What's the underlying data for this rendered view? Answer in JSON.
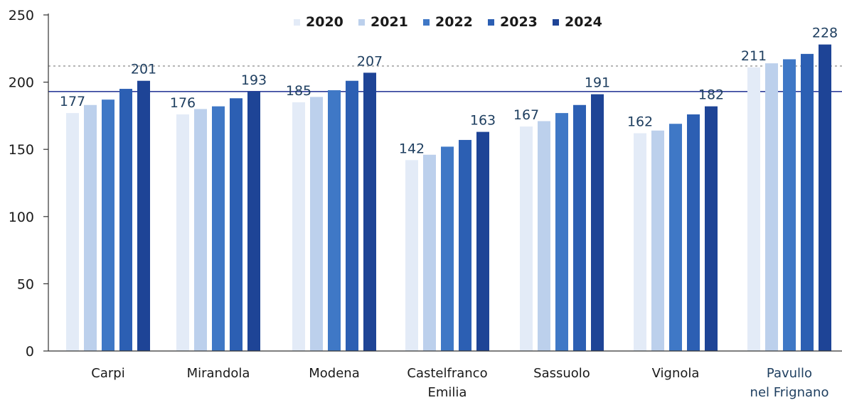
{
  "chart_data": {
    "type": "bar",
    "title": "",
    "xlabel": "",
    "ylabel": "",
    "ylim": [
      0,
      250
    ],
    "yticks": [
      0,
      50,
      100,
      150,
      200,
      250
    ],
    "grid": false,
    "legend_position": "top",
    "categories": [
      [
        "Carpi"
      ],
      [
        "Mirandola"
      ],
      [
        "Modena"
      ],
      [
        "Castelfranco",
        "Emilia"
      ],
      [
        "Sassuolo"
      ],
      [
        "Vignola"
      ],
      [
        "Pavullo",
        "nel Frignano"
      ]
    ],
    "series": [
      {
        "name": "2020",
        "color": "#e3ebf7",
        "values": [
          177,
          176,
          185,
          142,
          167,
          162,
          211
        ]
      },
      {
        "name": "2021",
        "color": "#bcd0ec",
        "values": [
          183,
          180,
          189,
          146,
          171,
          164,
          214
        ]
      },
      {
        "name": "2022",
        "color": "#3f78c6",
        "values": [
          187,
          182,
          194,
          152,
          177,
          169,
          217
        ]
      },
      {
        "name": "2023",
        "color": "#2c5fb3",
        "values": [
          195,
          188,
          201,
          157,
          183,
          176,
          221
        ]
      },
      {
        "name": "2024",
        "color": "#1e4496",
        "values": [
          201,
          193,
          207,
          163,
          191,
          182,
          228
        ]
      }
    ],
    "data_labels": [
      {
        "category": 0,
        "series": 0,
        "text": "177"
      },
      {
        "category": 0,
        "series": 4,
        "text": "201"
      },
      {
        "category": 1,
        "series": 0,
        "text": "176"
      },
      {
        "category": 1,
        "series": 4,
        "text": "193"
      },
      {
        "category": 2,
        "series": 0,
        "text": "185"
      },
      {
        "category": 2,
        "series": 4,
        "text": "207"
      },
      {
        "category": 3,
        "series": 0,
        "text": "142"
      },
      {
        "category": 3,
        "series": 4,
        "text": "163"
      },
      {
        "category": 4,
        "series": 0,
        "text": "167"
      },
      {
        "category": 4,
        "series": 4,
        "text": "191"
      },
      {
        "category": 5,
        "series": 0,
        "text": "162"
      },
      {
        "category": 5,
        "series": 4,
        "text": "182"
      },
      {
        "category": 6,
        "series": 0,
        "text": "211"
      },
      {
        "category": 6,
        "series": 4,
        "text": "228"
      }
    ],
    "reference_lines": [
      {
        "value": 212,
        "color": "#b3b3b3",
        "style": "dotted"
      },
      {
        "value": 193,
        "color": "#2f3f9a",
        "style": "solid"
      }
    ],
    "colors": {
      "axis": "#333333",
      "tick_text": "#1a1a1a",
      "label_text": "#1f3f60",
      "category_text": "#1a1a1a",
      "last_category_text": "#1f3f60"
    }
  }
}
